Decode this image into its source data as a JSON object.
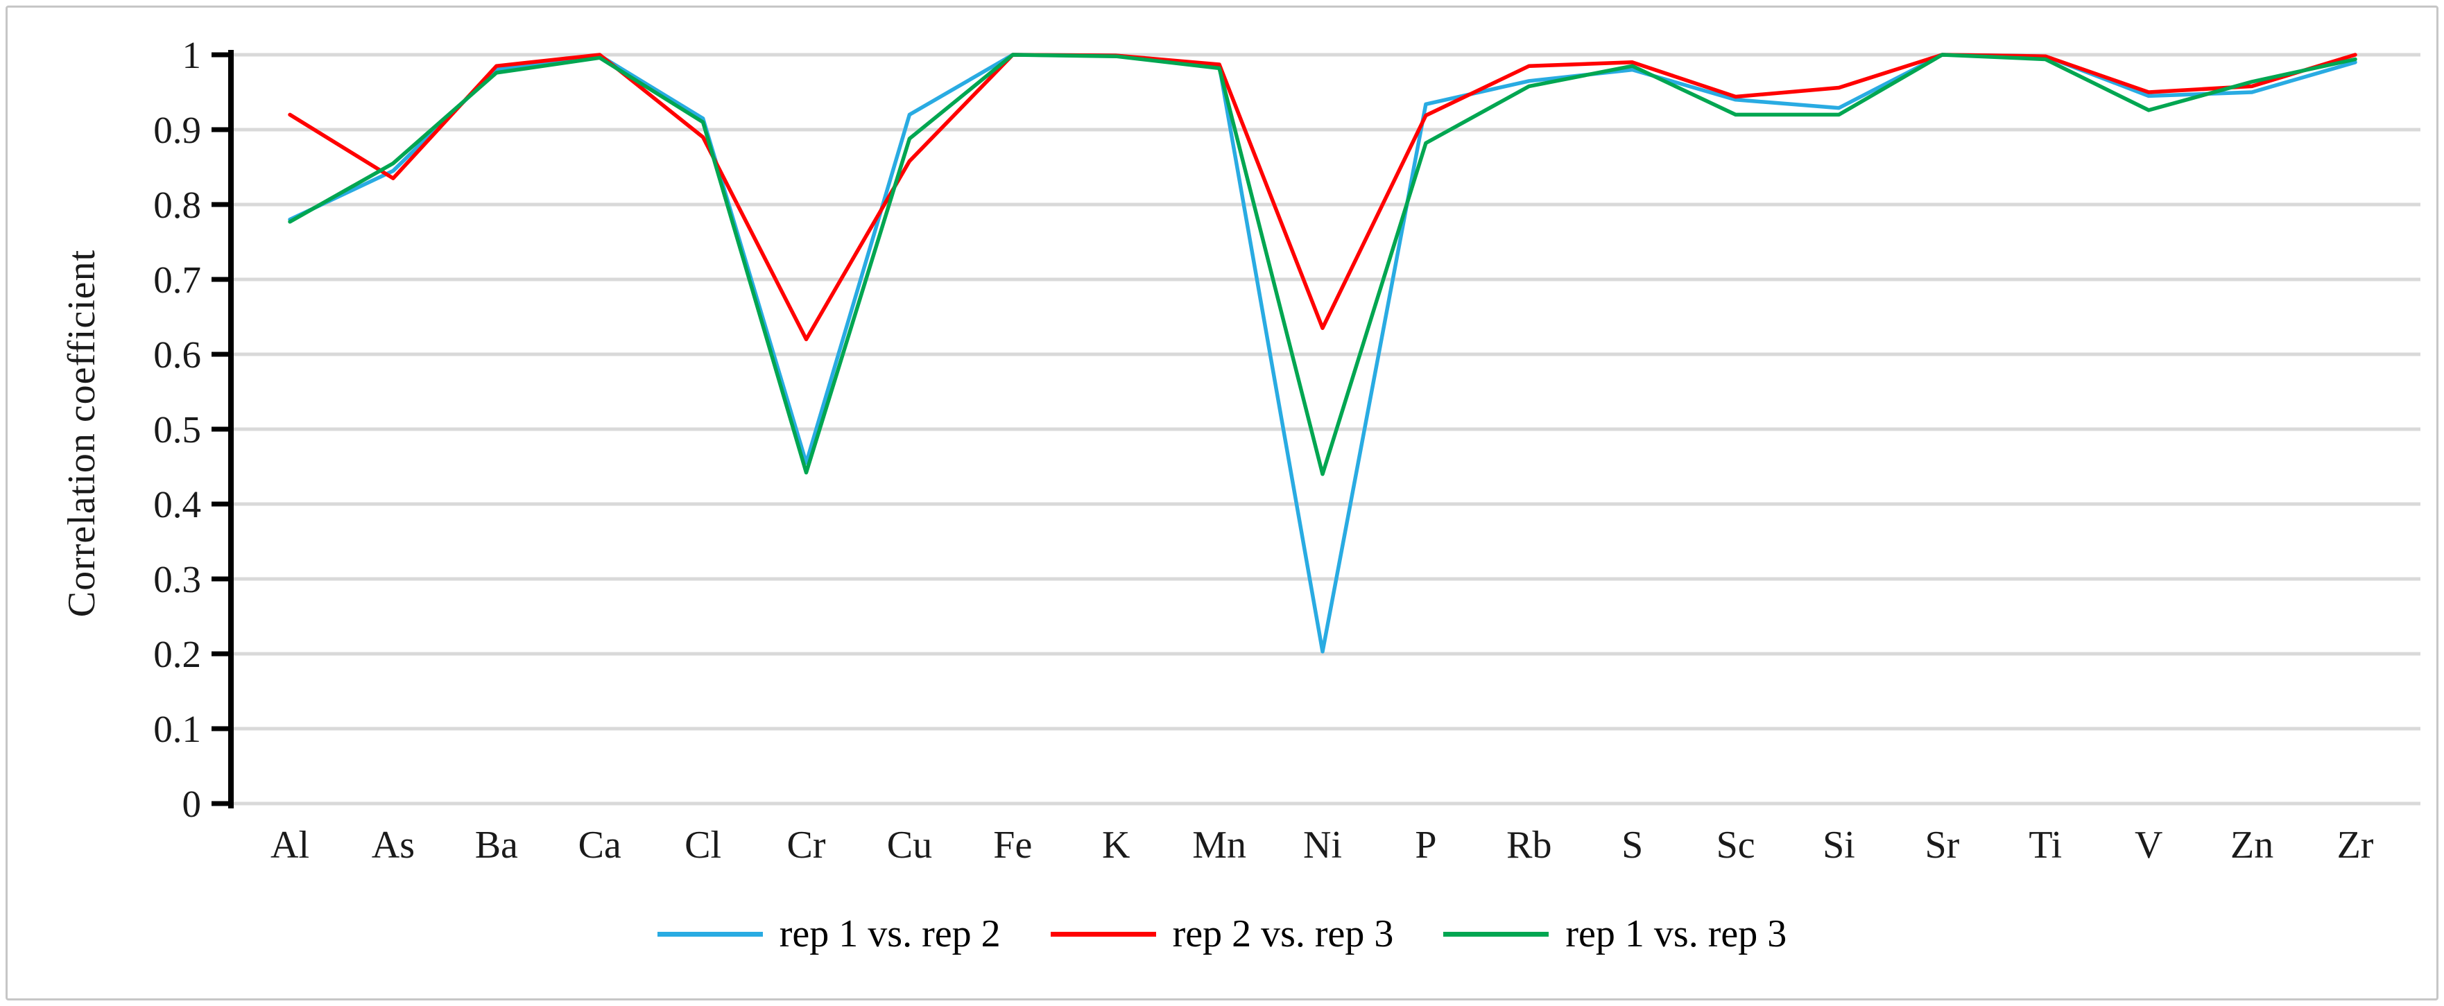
{
  "figure": {
    "background": "#ffffff",
    "border_color": "#c6c6c6",
    "gridline_color": "#d9d9d9",
    "axis_color": "#000000",
    "text_color": "#1a1a1a"
  },
  "chart_data": {
    "type": "line",
    "title": "",
    "xlabel": "",
    "ylabel": "Correlation coefficient",
    "ylim": [
      0,
      1
    ],
    "ytick_step": 0.1,
    "ytick_labels": [
      "0",
      "0.1",
      "0.2",
      "0.3",
      "0.4",
      "0.5",
      "0.6",
      "0.7",
      "0.8",
      "0.9",
      "1"
    ],
    "grid": "horizontal",
    "legend_position": "bottom",
    "categories": [
      "Al",
      "As",
      "Ba",
      "Ca",
      "Cl",
      "Cr",
      "Cu",
      "Fe",
      "K",
      "Mn",
      "Ni",
      "P",
      "Rb",
      "S",
      "Sc",
      "Si",
      "Sr",
      "Ti",
      "V",
      "Zn",
      "Zr"
    ],
    "series": [
      {
        "name": "rep 1 vs. rep 2",
        "color": "#29abe2",
        "values": [
          0.78,
          0.845,
          0.98,
          0.999,
          0.915,
          0.455,
          0.92,
          1.0,
          0.999,
          0.985,
          0.203,
          0.934,
          0.965,
          0.98,
          0.94,
          0.929,
          1.0,
          0.998,
          0.945,
          0.95,
          0.99
        ]
      },
      {
        "name": "rep 2 vs. rep 3",
        "color": "#ff0000",
        "values": [
          0.92,
          0.835,
          0.985,
          1.0,
          0.89,
          0.62,
          0.858,
          1.0,
          0.999,
          0.987,
          0.635,
          0.919,
          0.985,
          0.99,
          0.944,
          0.956,
          1.0,
          0.998,
          0.95,
          0.958,
          1.0
        ]
      },
      {
        "name": "rep 1 vs. rep 3",
        "color": "#00a651",
        "values": [
          0.777,
          0.855,
          0.976,
          0.996,
          0.91,
          0.442,
          0.888,
          1.0,
          0.998,
          0.982,
          0.44,
          0.882,
          0.958,
          0.985,
          0.92,
          0.92,
          1.0,
          0.994,
          0.926,
          0.964,
          0.994
        ]
      }
    ]
  }
}
